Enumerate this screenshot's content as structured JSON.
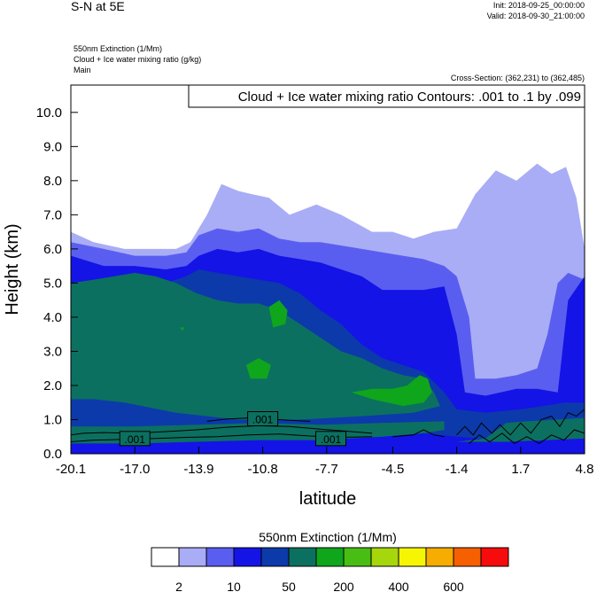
{
  "header": {
    "title": "S-N at 5E",
    "init": "Init: 2018-09-25_00:00:00",
    "valid": "Valid: 2018-09-30_21:00:00",
    "field1": "550nm Extinction   (1/Mm)",
    "field2": "Cloud + Ice water mixing ratio   (g/kg)",
    "field3": "Main",
    "cross_section": "Cross-Section: (362,231) to (362,485)"
  },
  "chart_data": {
    "type": "contour",
    "title": "S-N at 5E",
    "xlabel": "latitude",
    "ylabel": "Height (km)",
    "xlim": [
      -20.1,
      4.8
    ],
    "ylim": [
      0.0,
      10.8
    ],
    "xticks": [
      "-20.1",
      "-17.0",
      "-13.9",
      "-10.8",
      "-7.7",
      "-4.5",
      "-1.4",
      "1.7",
      "4.8"
    ],
    "yticks": [
      "0.0",
      "1.0",
      "2.0",
      "3.0",
      "4.0",
      "5.0",
      "6.0",
      "7.0",
      "8.0",
      "9.0",
      "10.0"
    ],
    "contour_info": "Cloud + Ice water mixing ratio Contours: .001 to .1 by .099",
    "contour_labels": [
      {
        "text": ".001",
        "x": -17.0,
        "y": 0.42
      },
      {
        "text": ".001",
        "x": -10.8,
        "y": 1.0
      },
      {
        "text": ".001",
        "x": -7.5,
        "y": 0.42
      }
    ],
    "colorbar": {
      "title": "550nm Extinction  (1/Mm)",
      "tick_labels": [
        "2",
        "10",
        "50",
        "200",
        "400",
        "600"
      ],
      "colors": [
        "#ffffff",
        "#a9adf6",
        "#5a5ef0",
        "#1414e6",
        "#0c3aaa",
        "#0c7060",
        "#0fa61c",
        "#48be14",
        "#a6d60c",
        "#f6f604",
        "#f6ac00",
        "#f66000",
        "#f60c0c"
      ]
    },
    "bands": [
      {
        "level": "2",
        "color": "#a9adf6",
        "top": [
          [
            -20.1,
            6.5
          ],
          [
            -19.0,
            6.2
          ],
          [
            -17.5,
            6.0
          ],
          [
            -16.0,
            6.0
          ],
          [
            -15.0,
            6.0
          ],
          [
            -14.3,
            6.2
          ],
          [
            -13.5,
            7.0
          ],
          [
            -12.8,
            7.9
          ],
          [
            -12.0,
            7.7
          ],
          [
            -11.3,
            7.6
          ],
          [
            -10.5,
            7.5
          ],
          [
            -9.5,
            7.0
          ],
          [
            -8.2,
            7.3
          ],
          [
            -7.0,
            7.0
          ],
          [
            -5.5,
            6.5
          ],
          [
            -4.5,
            6.5
          ],
          [
            -3.5,
            6.3
          ],
          [
            -2.5,
            6.5
          ],
          [
            -1.4,
            6.6
          ],
          [
            -0.5,
            7.6
          ],
          [
            0.5,
            8.3
          ],
          [
            1.5,
            8.0
          ],
          [
            2.5,
            8.5
          ],
          [
            3.2,
            8.2
          ],
          [
            3.9,
            8.4
          ],
          [
            4.4,
            7.5
          ],
          [
            4.8,
            6.0
          ]
        ]
      },
      {
        "level": "10",
        "color": "#5a5ef0",
        "top": [
          [
            -20.1,
            6.2
          ],
          [
            -18.5,
            6.0
          ],
          [
            -17.0,
            5.8
          ],
          [
            -15.5,
            5.8
          ],
          [
            -14.5,
            5.9
          ],
          [
            -13.9,
            6.4
          ],
          [
            -13.0,
            6.6
          ],
          [
            -12.0,
            6.5
          ],
          [
            -11.0,
            6.6
          ],
          [
            -10.0,
            6.3
          ],
          [
            -9.0,
            6.2
          ],
          [
            -8.0,
            6.2
          ],
          [
            -7.0,
            6.1
          ],
          [
            -6.0,
            6.0
          ],
          [
            -5.0,
            5.9
          ],
          [
            -4.0,
            5.8
          ],
          [
            -3.0,
            5.7
          ],
          [
            -2.0,
            5.5
          ],
          [
            -1.4,
            5.2
          ],
          [
            -0.8,
            4.0
          ],
          [
            -0.5,
            2.2
          ],
          [
            0.5,
            2.2
          ],
          [
            1.5,
            2.3
          ],
          [
            2.5,
            2.5
          ],
          [
            3.0,
            3.5
          ],
          [
            3.5,
            5.0
          ],
          [
            4.0,
            5.3
          ],
          [
            4.8,
            5.1
          ]
        ]
      },
      {
        "level": "50",
        "color": "#1414e6",
        "top": [
          [
            -20.1,
            5.8
          ],
          [
            -18.5,
            5.5
          ],
          [
            -17.0,
            5.5
          ],
          [
            -15.5,
            5.4
          ],
          [
            -14.5,
            5.5
          ],
          [
            -13.9,
            5.8
          ],
          [
            -13.0,
            6.0
          ],
          [
            -12.0,
            5.9
          ],
          [
            -11.0,
            6.0
          ],
          [
            -10.0,
            5.8
          ],
          [
            -9.0,
            5.7
          ],
          [
            -8.0,
            5.6
          ],
          [
            -7.0,
            5.4
          ],
          [
            -6.0,
            5.2
          ],
          [
            -5.0,
            4.8
          ],
          [
            -4.0,
            4.8
          ],
          [
            -3.0,
            4.8
          ],
          [
            -2.0,
            4.9
          ],
          [
            -1.4,
            3.5
          ],
          [
            -1.0,
            1.8
          ],
          [
            0.0,
            1.7
          ],
          [
            1.5,
            1.9
          ],
          [
            2.5,
            1.9
          ],
          [
            3.5,
            1.8
          ],
          [
            4.0,
            4.5
          ],
          [
            4.8,
            5.2
          ]
        ]
      },
      {
        "level": "200",
        "color": "#0c3aaa",
        "top": [
          [
            -20.1,
            5.0
          ],
          [
            -18.5,
            5.0
          ],
          [
            -17.0,
            4.9
          ],
          [
            -15.5,
            5.0
          ],
          [
            -14.5,
            5.2
          ],
          [
            -13.9,
            5.4
          ],
          [
            -13.0,
            5.3
          ],
          [
            -12.0,
            5.2
          ],
          [
            -11.0,
            5.1
          ],
          [
            -10.0,
            5.0
          ],
          [
            -9.0,
            4.7
          ],
          [
            -8.0,
            4.2
          ],
          [
            -7.0,
            3.8
          ],
          [
            -6.0,
            3.2
          ],
          [
            -5.0,
            2.8
          ],
          [
            -4.0,
            2.6
          ],
          [
            -3.0,
            2.4
          ],
          [
            -2.0,
            1.8
          ],
          [
            -1.4,
            1.3
          ],
          [
            0.0,
            1.2
          ],
          [
            1.7,
            1.3
          ],
          [
            2.8,
            1.4
          ],
          [
            3.8,
            1.5
          ],
          [
            4.8,
            1.5
          ]
        ]
      },
      {
        "level": "400",
        "color": "#0c7060",
        "top": [
          [
            -20.1,
            5.0
          ],
          [
            -19.0,
            5.1
          ],
          [
            -18.0,
            5.2
          ],
          [
            -17.0,
            5.3
          ],
          [
            -16.0,
            5.2
          ],
          [
            -15.0,
            5.0
          ],
          [
            -14.0,
            4.7
          ],
          [
            -13.0,
            4.5
          ],
          [
            -12.0,
            4.4
          ],
          [
            -11.0,
            4.4
          ],
          [
            -10.0,
            4.2
          ],
          [
            -9.0,
            3.8
          ],
          [
            -8.0,
            3.4
          ],
          [
            -7.0,
            3.0
          ],
          [
            -6.0,
            2.8
          ],
          [
            -5.0,
            2.5
          ],
          [
            -4.0,
            2.3
          ],
          [
            -3.0,
            2.2
          ],
          [
            -2.5,
            1.8
          ],
          [
            -2.2,
            1.4
          ],
          [
            -3.5,
            1.2
          ],
          [
            -6.0,
            1.1
          ],
          [
            -9.0,
            1.0
          ],
          [
            -12.0,
            1.0
          ],
          [
            -15.0,
            1.2
          ],
          [
            -17.5,
            1.5
          ],
          [
            -19.0,
            1.6
          ],
          [
            -20.1,
            1.6
          ]
        ]
      },
      {
        "level": "600",
        "color": "#0fa61c",
        "shape": "blobs",
        "blobs": [
          [
            [
              -10.5,
              4.3
            ],
            [
              -10.0,
              4.5
            ],
            [
              -9.6,
              4.2
            ],
            [
              -9.7,
              3.8
            ],
            [
              -10.3,
              3.7
            ]
          ],
          [
            [
              -11.6,
              2.6
            ],
            [
              -11.0,
              2.8
            ],
            [
              -10.4,
              2.6
            ],
            [
              -10.6,
              2.2
            ],
            [
              -11.4,
              2.2
            ]
          ],
          [
            [
              -6.5,
              1.8
            ],
            [
              -5.5,
              1.9
            ],
            [
              -4.5,
              1.9
            ],
            [
              -3.8,
              2.0
            ],
            [
              -3.2,
              2.3
            ],
            [
              -2.8,
              2.2
            ],
            [
              -2.6,
              1.8
            ],
            [
              -3.0,
              1.5
            ],
            [
              -4.0,
              1.4
            ],
            [
              -5.5,
              1.6
            ]
          ],
          [
            [
              -14.8,
              3.7
            ],
            [
              -14.7,
              3.6
            ],
            [
              -14.6,
              3.7
            ]
          ]
        ]
      }
    ]
  }
}
